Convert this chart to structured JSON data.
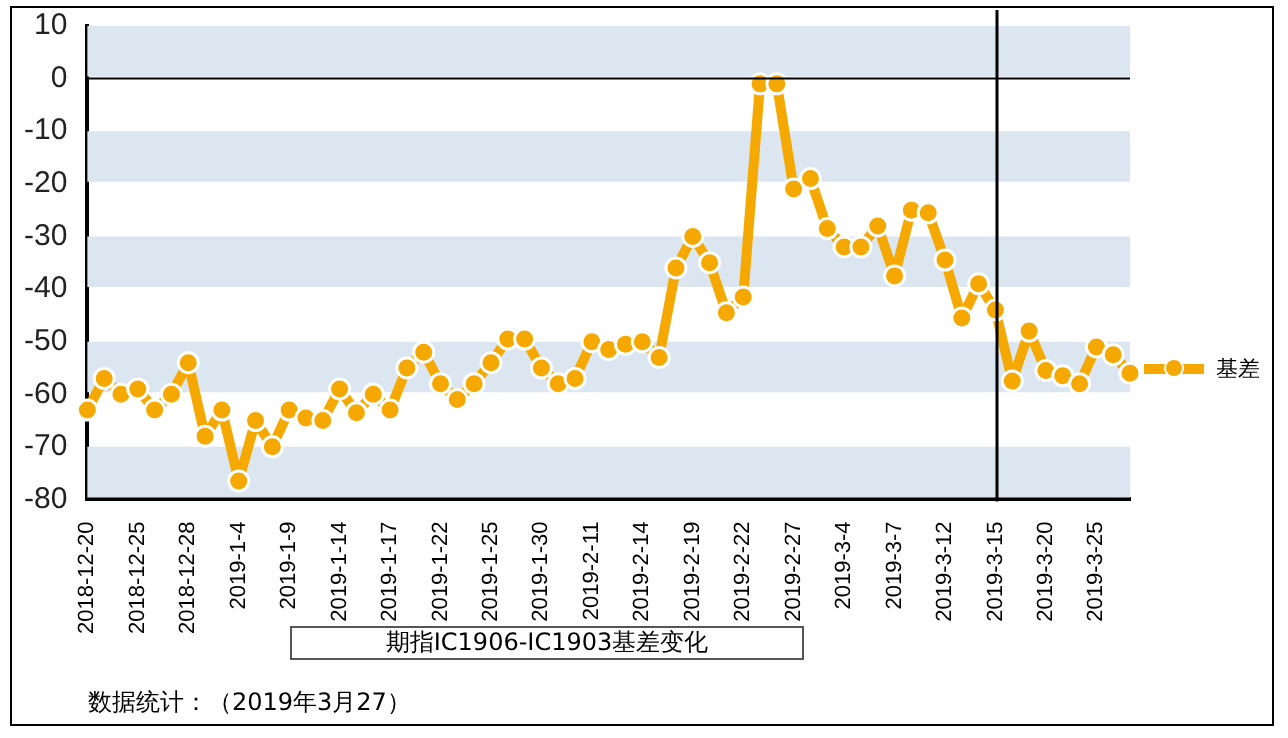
{
  "chart_data": {
    "type": "line",
    "title": "期指IC1906-IC1903基差变化",
    "annotations": [
      "数据统计：（2019年3月27）"
    ],
    "categories": [
      "2018-12-20",
      null,
      null,
      "2018-12-25",
      null,
      null,
      "2018-12-28",
      null,
      null,
      "2019-1-4",
      null,
      null,
      "2019-1-9",
      null,
      null,
      "2019-1-14",
      null,
      null,
      "2019-1-17",
      null,
      null,
      "2019-1-22",
      null,
      null,
      "2019-1-25",
      null,
      null,
      "2019-1-30",
      null,
      null,
      "2019-2-11",
      null,
      null,
      "2019-2-14",
      null,
      null,
      "2019-2-19",
      null,
      null,
      "2019-2-22",
      null,
      null,
      "2019-2-27",
      null,
      null,
      "2019-3-4",
      null,
      null,
      "2019-3-7",
      null,
      null,
      "2019-3-12",
      null,
      null,
      "2019-3-15",
      null,
      null,
      "2019-3-20",
      null,
      null,
      "2019-3-25",
      null,
      null
    ],
    "series": [
      {
        "name": "基差",
        "color": "#f5a800",
        "values": [
          -63,
          -57,
          -60,
          -59,
          -63,
          -60,
          -54,
          -68,
          -63,
          -76.5,
          -65,
          -70,
          -63,
          -64.5,
          -65,
          -59,
          -63.5,
          -60,
          -63,
          -55,
          -52,
          -58,
          -61,
          -58,
          -54,
          -49.5,
          -49.5,
          -55,
          -58,
          -57,
          -50,
          -51.5,
          -50.5,
          -50,
          -53,
          -36,
          -30,
          -35,
          -44.5,
          -41.5,
          -1,
          -1,
          -21,
          -19,
          -28.5,
          -32,
          -32,
          -28,
          -37.5,
          -25,
          -25.5,
          -34.5,
          -45.5,
          -39,
          -44,
          -57.5,
          -48,
          -55.5,
          -56.5,
          -58,
          -51,
          -52.5,
          -56
        ]
      }
    ],
    "ylim": [
      -80,
      10
    ],
    "yticks": [
      -80,
      -70,
      -60,
      -50,
      -40,
      -30,
      -20,
      -10,
      0,
      10
    ],
    "ref_lines": [
      {
        "axis": "x",
        "value": "2019-3-15",
        "color": "#000000"
      },
      {
        "axis": "y",
        "value": 0,
        "color": "#000000"
      }
    ],
    "bands": [
      {
        "axis": "y",
        "from": 0,
        "to": 10,
        "color": "#dce6f1"
      },
      {
        "axis": "y",
        "from": -20,
        "to": -10,
        "color": "#dce6f1"
      },
      {
        "axis": "y",
        "from": -40,
        "to": -30,
        "color": "#dce6f1"
      },
      {
        "axis": "y",
        "from": -60,
        "to": -50,
        "color": "#dce6f1"
      },
      {
        "axis": "y",
        "from": -80,
        "to": -70,
        "color": "#dce6f1"
      }
    ],
    "legend": "right",
    "marker": "circle",
    "line_style": "solid"
  }
}
